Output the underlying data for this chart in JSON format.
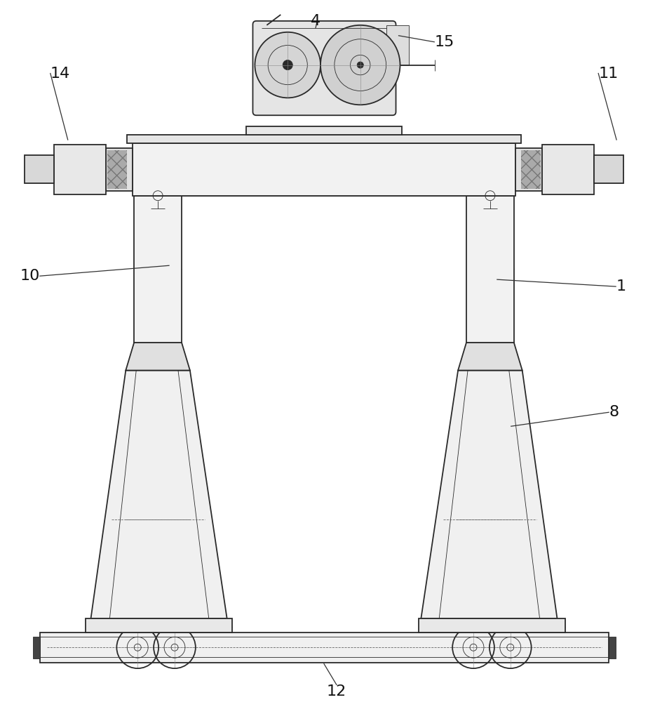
{
  "bg_color": "#ffffff",
  "line_color": "#2a2a2a",
  "light_line": "#888888",
  "dashed_color": "#666666",
  "label_fontsize": 16,
  "figsize": [
    9.24,
    10.0
  ],
  "dpi": 100
}
